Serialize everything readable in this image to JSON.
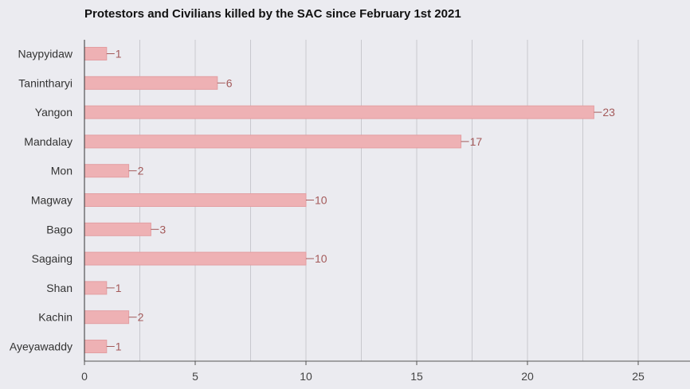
{
  "chart_data": {
    "type": "bar",
    "orientation": "horizontal",
    "title": "Protestors and Civilians killed by the SAC since February 1st 2021",
    "categories": [
      "Naypyidaw",
      "Tanintharyi",
      "Yangon",
      "Mandalay",
      "Mon",
      "Magway",
      "Bago",
      "Sagaing",
      "Shan",
      "Kachin",
      "Ayeyawaddy"
    ],
    "values": [
      1,
      6,
      23,
      17,
      2,
      10,
      3,
      10,
      1,
      2,
      1
    ],
    "xlim": [
      0,
      27
    ],
    "xticks": [
      0,
      5,
      10,
      15,
      20,
      25
    ],
    "grid": true,
    "legend": "none",
    "bar_color": "#eeb1b4",
    "bar_edge_color": "#e39ea2",
    "label_color": "#a45a5a"
  }
}
